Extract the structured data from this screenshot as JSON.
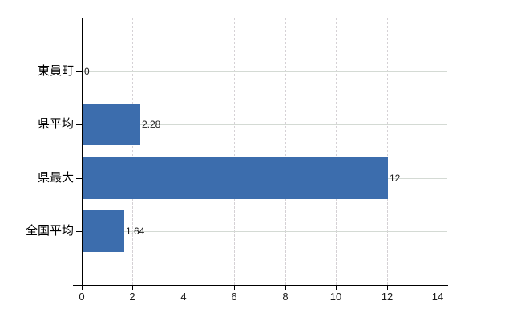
{
  "chart_data": {
    "type": "bar",
    "orientation": "horizontal",
    "title": "",
    "xlabel": "",
    "ylabel": "",
    "categories": [
      "東員町",
      "県平均",
      "県最大",
      "全国平均"
    ],
    "values": [
      0,
      2.28,
      12,
      1.64
    ],
    "value_labels": [
      "0",
      "2.28",
      "12",
      "1.64"
    ],
    "xlim": [
      0,
      14
    ],
    "xticks": [
      0,
      2,
      4,
      6,
      8,
      10,
      12,
      14
    ],
    "xtick_labels": [
      "0",
      "2",
      "4",
      "6",
      "8",
      "10",
      "12",
      "14"
    ],
    "grid": true,
    "legend": "none",
    "colors": {
      "bar": "#3c6dad",
      "grid_vertical": "#d5d1d5",
      "grid_horizontal": "#d4dad4",
      "axis": "#000000",
      "text": "#1b1b1b",
      "background": "#ffffff"
    }
  }
}
